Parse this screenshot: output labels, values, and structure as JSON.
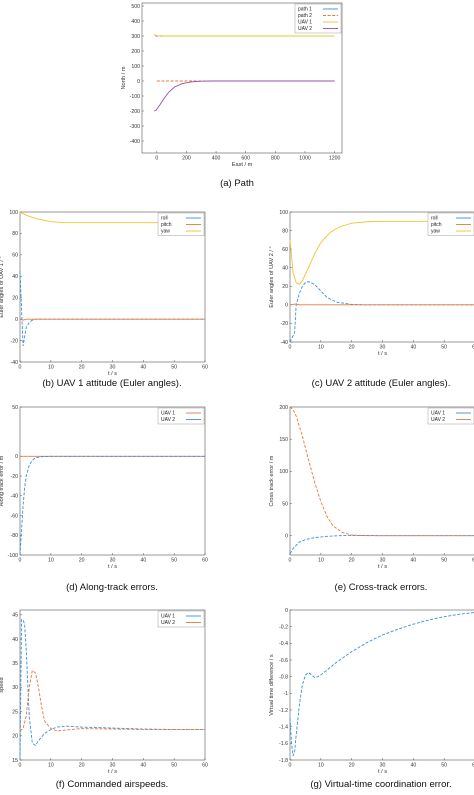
{
  "colors": {
    "blue": "#3a8ee6",
    "orange": "#e8783a",
    "yellow": "#f0c430",
    "purple": "#9a4bb5"
  },
  "chart_data": [
    {
      "id": "a",
      "type": "line",
      "caption": "(a) Path",
      "xlabel": "East / m",
      "ylabel": "North / m",
      "xlim": [
        -100,
        1250
      ],
      "ylim": [
        -480,
        520
      ],
      "xticks": [
        0,
        200,
        400,
        600,
        800,
        1000,
        1200
      ],
      "yticks": [
        500,
        400,
        300,
        200,
        100,
        0,
        -100,
        -200,
        -300,
        -400
      ],
      "legend": {
        "position": "top-right",
        "entries": [
          {
            "name": "path 1",
            "color": "#3a8ee6",
            "dash": "solid"
          },
          {
            "name": "path 2",
            "color": "#e8783a",
            "dash": "dash"
          },
          {
            "name": "UAV 1",
            "color": "#f0c430",
            "dash": "solid"
          },
          {
            "name": "UAV 2",
            "color": "#9a4bb5",
            "dash": "solid"
          }
        ]
      },
      "series": [
        {
          "name": "path 1",
          "color": "#3a8ee6",
          "dash": "dash",
          "x": [
            -10,
            1200
          ],
          "y": [
            300,
            300
          ]
        },
        {
          "name": "path 2",
          "color": "#e8783a",
          "dash": "dash",
          "x": [
            0,
            1200
          ],
          "y": [
            0,
            0
          ]
        },
        {
          "name": "UAV 1",
          "color": "#f0c430",
          "dash": "solid",
          "x": [
            -20,
            0,
            50,
            100,
            200,
            400,
            800,
            1200
          ],
          "y": [
            310,
            302,
            300,
            300,
            300,
            300,
            300,
            300
          ]
        },
        {
          "name": "UAV 2",
          "color": "#9a4bb5",
          "dash": "solid",
          "x": [
            -20,
            -5,
            20,
            50,
            80,
            120,
            170,
            230,
            300,
            400,
            600,
            1200
          ],
          "y": [
            -200,
            -195,
            -160,
            -115,
            -75,
            -40,
            -18,
            -6,
            -1,
            0,
            0,
            0
          ]
        }
      ]
    },
    {
      "id": "b",
      "type": "line",
      "caption": "(b) UAV 1 attitude (Euler angles).",
      "xlabel": "t / s",
      "ylabel": "Euler angles of UAV 1 / °",
      "xlim": [
        0,
        60
      ],
      "ylim": [
        -40,
        100
      ],
      "xticks": [
        0,
        10,
        20,
        30,
        40,
        50,
        60
      ],
      "yticks": [
        100,
        80,
        60,
        40,
        20,
        0,
        -20,
        -40
      ],
      "legend": {
        "position": "top-right",
        "entries": [
          {
            "name": "roll",
            "color": "#3a8ee6",
            "dash": "solid"
          },
          {
            "name": "pitch",
            "color": "#e8783a",
            "dash": "solid"
          },
          {
            "name": "yaw",
            "color": "#f0c430",
            "dash": "solid"
          }
        ]
      },
      "series": [
        {
          "name": "roll",
          "color": "#3a8ee6",
          "dash": "dash",
          "x": [
            0,
            1,
            2,
            3,
            4,
            5,
            7,
            10,
            60
          ],
          "y": [
            45,
            -25,
            -8,
            -3,
            -1,
            0,
            0,
            0,
            0
          ]
        },
        {
          "name": "pitch",
          "color": "#e8783a",
          "dash": "solid",
          "x": [
            0,
            1,
            2,
            60
          ],
          "y": [
            0,
            -1,
            0,
            0
          ]
        },
        {
          "name": "yaw",
          "color": "#f0c430",
          "dash": "solid",
          "x": [
            0,
            2,
            5,
            10,
            15,
            20,
            30,
            60
          ],
          "y": [
            100,
            97,
            94,
            91,
            90,
            90,
            90,
            90
          ]
        }
      ]
    },
    {
      "id": "c",
      "type": "line",
      "caption": "(c) UAV 2 attitude (Euler angles).",
      "xlabel": "t / s",
      "ylabel": "Euler angles of UAV 2 / °",
      "xlim": [
        0,
        60
      ],
      "ylim": [
        -40,
        100
      ],
      "xticks": [
        0,
        10,
        20,
        30,
        40,
        50,
        60
      ],
      "yticks": [
        100,
        80,
        60,
        40,
        20,
        0,
        -20,
        -40
      ],
      "legend": {
        "position": "top-right",
        "entries": [
          {
            "name": "roll",
            "color": "#3a8ee6",
            "dash": "solid"
          },
          {
            "name": "pitch",
            "color": "#e8783a",
            "dash": "solid"
          },
          {
            "name": "yaw",
            "color": "#f0c430",
            "dash": "solid"
          }
        ]
      },
      "series": [
        {
          "name": "roll",
          "color": "#3a8ee6",
          "dash": "dash",
          "x": [
            0,
            1.5,
            2,
            3,
            4,
            5,
            6,
            8,
            10,
            12,
            15,
            20,
            25,
            60
          ],
          "y": [
            -40,
            -30,
            0,
            12,
            20,
            24,
            25,
            22,
            15,
            8,
            3,
            0.5,
            0,
            0
          ]
        },
        {
          "name": "pitch",
          "color": "#e8783a",
          "dash": "solid",
          "x": [
            0,
            2,
            3,
            60
          ],
          "y": [
            0,
            1,
            0,
            0
          ]
        },
        {
          "name": "yaw",
          "color": "#f0c430",
          "dash": "solid",
          "x": [
            0,
            1,
            2,
            3,
            4,
            6,
            8,
            10,
            13,
            16,
            20,
            25,
            30,
            60
          ],
          "y": [
            70,
            35,
            24,
            22,
            26,
            40,
            55,
            67,
            78,
            84,
            88,
            89.5,
            90,
            90
          ]
        }
      ]
    },
    {
      "id": "d",
      "type": "line",
      "caption": "(d) Along-track errors.",
      "xlabel": "t / s",
      "ylabel": "Along track error / m",
      "xlim": [
        0,
        60
      ],
      "ylim": [
        -100,
        50
      ],
      "xticks": [
        0,
        10,
        20,
        30,
        40,
        50,
        60
      ],
      "yticks": [
        50,
        0,
        -20,
        -40,
        -60,
        -80,
        -100
      ],
      "legend": {
        "position": "top-right",
        "entries": [
          {
            "name": "UAV 1",
            "color": "#e8783a",
            "dash": "solid"
          },
          {
            "name": "UAV 2",
            "color": "#3a8ee6",
            "dash": "solid"
          }
        ]
      },
      "series": [
        {
          "name": "UAV 1",
          "color": "#e8783a",
          "dash": "solid",
          "x": [
            0,
            60
          ],
          "y": [
            0,
            0
          ]
        },
        {
          "name": "UAV 2",
          "color": "#3a8ee6",
          "dash": "dash",
          "x": [
            0,
            0.5,
            1,
            1.5,
            2,
            3,
            4,
            5,
            7,
            10,
            60
          ],
          "y": [
            -100,
            -75,
            -50,
            -32,
            -20,
            -9,
            -4,
            -1.5,
            -0.3,
            0,
            0
          ]
        }
      ]
    },
    {
      "id": "e",
      "type": "line",
      "caption": "(e) Cross-track errors.",
      "xlabel": "t / s",
      "ylabel": "Cross track error / m",
      "xlim": [
        0,
        60
      ],
      "ylim": [
        -30,
        200
      ],
      "xticks": [
        0,
        10,
        20,
        30,
        40,
        50,
        60
      ],
      "yticks": [
        200,
        150,
        100,
        50,
        0
      ],
      "legend": {
        "position": "top-right",
        "entries": [
          {
            "name": "UAV 1",
            "color": "#3a8ee6",
            "dash": "solid"
          },
          {
            "name": "UAV 2",
            "color": "#e8783a",
            "dash": "solid"
          }
        ]
      },
      "series": [
        {
          "name": "UAV 1",
          "color": "#3a8ee6",
          "dash": "dash",
          "x": [
            0,
            1,
            3,
            5,
            8,
            12,
            16,
            20,
            30,
            60
          ],
          "y": [
            -28,
            -20,
            -10,
            -6,
            -3,
            -1,
            0,
            0.5,
            0,
            0
          ]
        },
        {
          "name": "UAV 2",
          "color": "#e8783a",
          "dash": "dash",
          "x": [
            0,
            1,
            2,
            4,
            6,
            8,
            10,
            12,
            14,
            17,
            20,
            25,
            30,
            60
          ],
          "y": [
            200,
            196,
            186,
            155,
            118,
            83,
            53,
            30,
            15,
            5,
            1,
            0,
            0,
            0
          ]
        }
      ]
    },
    {
      "id": "f",
      "type": "line",
      "caption": "(f) Commanded airspeeds.",
      "xlabel": "t / s",
      "ylabel": "speed",
      "xlim": [
        0,
        60
      ],
      "ylim": [
        15,
        46
      ],
      "xticks": [
        0,
        10,
        20,
        30,
        40,
        50,
        60
      ],
      "yticks": [
        45,
        40,
        35,
        30,
        25,
        20,
        15
      ],
      "legend": {
        "position": "top-right",
        "entries": [
          {
            "name": "UAV 1",
            "color": "#3a8ee6",
            "dash": "solid"
          },
          {
            "name": "UAV 2",
            "color": "#e8783a",
            "dash": "solid"
          }
        ]
      },
      "series": [
        {
          "name": "UAV 1",
          "color": "#3a8ee6",
          "dash": "dash",
          "x": [
            0,
            0.5,
            1,
            1.5,
            2,
            3,
            4,
            5,
            6,
            8,
            10,
            12,
            15,
            20,
            30,
            40,
            50,
            60
          ],
          "y": [
            15,
            44,
            44,
            43,
            38,
            24,
            18.5,
            18,
            19,
            20.5,
            21.3,
            21.8,
            22,
            21.8,
            21.6,
            21.4,
            21.3,
            21.3
          ]
        },
        {
          "name": "UAV 2",
          "color": "#e8783a",
          "dash": "dash",
          "x": [
            0,
            1,
            2,
            3,
            4,
            5,
            6,
            7,
            8,
            10,
            12,
            15,
            20,
            30,
            40,
            50,
            60
          ],
          "y": [
            21,
            21.5,
            24,
            30,
            33.5,
            33,
            30,
            26,
            23,
            21.5,
            21,
            21.2,
            21.5,
            21.4,
            21.3,
            21.3,
            21.3
          ]
        }
      ]
    },
    {
      "id": "g",
      "type": "line",
      "caption": "(g) Virtual-time coordination error.",
      "xlabel": "t / s",
      "ylabel": "Virtual time difference / s",
      "xlim": [
        0,
        60
      ],
      "ylim": [
        -1.8,
        0
      ],
      "xticks": [
        0,
        10,
        20,
        30,
        40,
        50,
        60
      ],
      "yticks": [
        0,
        -0.2,
        -0.4,
        -0.6,
        -0.8,
        -1,
        -1.2,
        -1.4,
        -1.6,
        -1.8
      ],
      "series": [
        {
          "name": "",
          "color": "#3a8ee6",
          "dash": "dash",
          "x": [
            0,
            0.5,
            1,
            1.5,
            2,
            3,
            4,
            5,
            6,
            7,
            8,
            9,
            10,
            12,
            15,
            20,
            25,
            30,
            35,
            40,
            45,
            50,
            55,
            60
          ],
          "y": [
            -1.3,
            -1.6,
            -1.75,
            -1.7,
            -1.5,
            -1.15,
            -0.9,
            -0.78,
            -0.75,
            -0.78,
            -0.81,
            -0.8,
            -0.78,
            -0.72,
            -0.63,
            -0.5,
            -0.39,
            -0.3,
            -0.23,
            -0.17,
            -0.12,
            -0.08,
            -0.05,
            -0.03
          ]
        }
      ]
    }
  ]
}
